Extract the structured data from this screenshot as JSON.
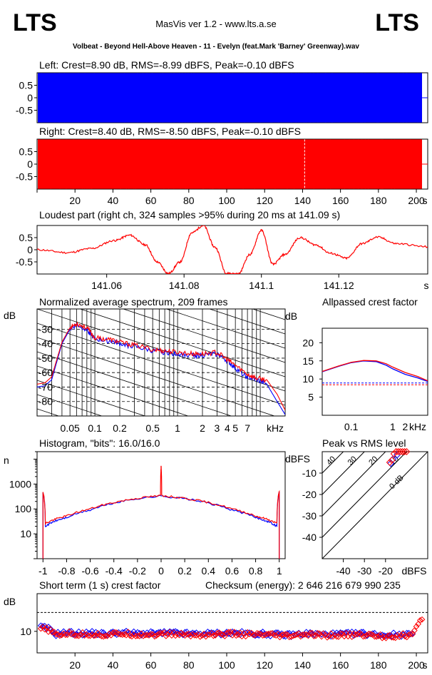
{
  "header": {
    "logo_left": "LTS",
    "app_title": "MasVis ver 1.2 - www.lts.a.se",
    "logo_right": "LTS",
    "file_name": "Volbeat - Beyond Hell-Above Heaven - 11 - Evelyn (feat.Mark 'Barney' Greenway).wav"
  },
  "colors": {
    "left": "#0000ff",
    "right": "#ff0000",
    "axis": "#000000"
  },
  "chart_data": [
    {
      "id": "left-waveform",
      "type": "area",
      "title": "Left: Crest=8.90 dB, RMS=-8.99 dBFS, Peak=-0.10 dBFS",
      "y_ticks": [
        "0.5",
        "0",
        "-0.5"
      ],
      "ylim": [
        -1,
        1
      ],
      "xlim": [
        0,
        206
      ],
      "fill_end_s": 203,
      "color": "#0000ff"
    },
    {
      "id": "right-waveform",
      "type": "area",
      "title": "Right: Crest=8.40 dB, RMS=-8.50 dBFS, Peak=-0.10 dBFS",
      "y_ticks": [
        "0.5",
        "0",
        "-0.5"
      ],
      "x_ticks": [
        "20",
        "40",
        "60",
        "80",
        "100",
        "120",
        "140",
        "160",
        "180",
        "200"
      ],
      "x_unit": "s",
      "ylim": [
        -1,
        1
      ],
      "xlim": [
        0,
        206
      ],
      "fill_end_s": 203,
      "loudest_marker_s": 141.09,
      "color": "#ff0000"
    },
    {
      "id": "loudest-part",
      "type": "line",
      "title": "Loudest part (right ch, 324 samples >95% during 20 ms at 141.09 s)",
      "y_ticks": [
        "0.5",
        "0",
        "-0.5"
      ],
      "x_ticks": [
        "141.06",
        "141.08",
        "141.1",
        "141.12"
      ],
      "x_unit": "s",
      "xlim": [
        141.042,
        141.143
      ],
      "ylim": [
        -1,
        1
      ],
      "series": [
        {
          "x": [
            141.042,
            141.05,
            141.056,
            141.062,
            141.066,
            141.07,
            141.073,
            141.076,
            141.079,
            141.082,
            141.085,
            141.088,
            141.091,
            141.094,
            141.097,
            141.1,
            141.103,
            141.106,
            141.11,
            141.114,
            141.118,
            141.122,
            141.126,
            141.13,
            141.135,
            141.143
          ],
          "y": [
            0,
            -0.12,
            0.05,
            0.38,
            0.6,
            0.2,
            -0.5,
            -0.98,
            -0.5,
            0.7,
            1.0,
            0.1,
            -0.97,
            -1.0,
            -0.2,
            0.8,
            -0.6,
            -0.2,
            0.5,
            0.2,
            -0.15,
            -0.35,
            0.25,
            0.52,
            0.25,
            0.12
          ]
        }
      ]
    },
    {
      "id": "spectrum",
      "type": "line",
      "title": "Normalized average spectrum, 209 frames",
      "ylabel": "dB",
      "y_ticks": [
        "-30",
        "-40",
        "-50",
        "-60",
        "-70",
        "-80"
      ],
      "x_ticks": [
        "0.05",
        "0.1",
        "0.2",
        "0.5",
        "1",
        "2",
        "3",
        "4",
        "5",
        "7"
      ],
      "x_unit": "kHz",
      "ylim": [
        -90,
        -16
      ],
      "xlim": [
        0.02,
        20
      ],
      "series": [
        {
          "color": "#0000ff",
          "x": [
            0.02,
            0.025,
            0.03,
            0.04,
            0.05,
            0.06,
            0.08,
            0.1,
            0.15,
            0.2,
            0.3,
            0.5,
            0.7,
            1,
            1.5,
            2,
            3,
            4,
            5,
            7,
            9,
            12,
            16,
            20
          ],
          "y": [
            -70,
            -69,
            -65,
            -40,
            -30,
            -27,
            -30,
            -37,
            -38,
            -40,
            -42,
            -45,
            -46,
            -47,
            -48,
            -48,
            -47,
            -52,
            -57,
            -63,
            -65,
            -68,
            -80,
            -89
          ]
        },
        {
          "color": "#ff0000",
          "x": [
            0.02,
            0.025,
            0.03,
            0.04,
            0.05,
            0.06,
            0.08,
            0.1,
            0.15,
            0.2,
            0.3,
            0.5,
            0.7,
            1,
            1.5,
            2,
            3,
            4,
            5,
            7,
            9,
            12,
            16,
            20
          ],
          "y": [
            -68,
            -67,
            -63,
            -39,
            -29,
            -26,
            -29,
            -36,
            -37,
            -39,
            -41,
            -44,
            -45,
            -46,
            -47,
            -47,
            -46,
            -51,
            -55,
            -61,
            -64,
            -65,
            -75,
            -86
          ]
        }
      ]
    },
    {
      "id": "allpassed-crest",
      "type": "line",
      "title": "Allpassed crest factor",
      "ylabel": "dB",
      "y_ticks": [
        "20",
        "15",
        "10",
        "5"
      ],
      "x_ticks": [
        "0.1",
        "1",
        "2"
      ],
      "x_unit": "kHz",
      "ylim": [
        0,
        24
      ],
      "xlim": [
        0.02,
        7
      ],
      "reference_lines": [
        {
          "value": 8.9,
          "color": "#0000ff"
        },
        {
          "value": 8.4,
          "color": "#ff0000"
        }
      ],
      "series": [
        {
          "color": "#0000ff",
          "x": [
            0.02,
            0.05,
            0.1,
            0.2,
            0.4,
            0.7,
            1,
            2,
            4,
            7
          ],
          "y": [
            12,
            13.5,
            14.5,
            15,
            14.8,
            13.8,
            12.8,
            11.3,
            10.3,
            9.3
          ]
        },
        {
          "color": "#ff0000",
          "x": [
            0.02,
            0.05,
            0.1,
            0.2,
            0.4,
            0.7,
            1,
            2,
            4,
            7
          ],
          "y": [
            12.1,
            13.6,
            14.6,
            15.1,
            15,
            14.2,
            13.3,
            11.8,
            10.7,
            9.5
          ]
        }
      ]
    },
    {
      "id": "histogram",
      "type": "line",
      "title": "Histogram, \"bits\": 16.0/16.0",
      "ylabel": "n",
      "y_ticks": [
        "1000",
        "100",
        "10"
      ],
      "x_ticks": [
        "-1",
        "-0.8",
        "-0.6",
        "-0.4",
        "-0.2",
        "0",
        "0.2",
        "0.4",
        "0.6",
        "0.8",
        "1"
      ],
      "ylim": [
        1,
        20000
      ],
      "xlim": [
        -1.05,
        1.05
      ],
      "y_scale": "log",
      "series": [
        {
          "color": "#0000ff",
          "x": [
            -1,
            -0.98,
            -0.9,
            -0.8,
            -0.6,
            -0.4,
            -0.2,
            0,
            0.2,
            0.4,
            0.6,
            0.8,
            0.9,
            0.98,
            1
          ],
          "y": [
            500,
            20,
            32,
            45,
            90,
            170,
            260,
            330,
            260,
            170,
            90,
            45,
            32,
            20,
            500
          ]
        },
        {
          "color": "#ff0000",
          "x": [
            -1,
            -0.98,
            -0.9,
            -0.8,
            -0.6,
            -0.4,
            -0.2,
            -0.005,
            0,
            0.005,
            0.2,
            0.4,
            0.6,
            0.8,
            0.9,
            0.98,
            1
          ],
          "y": [
            500,
            26,
            38,
            52,
            100,
            180,
            270,
            340,
            5500,
            340,
            270,
            180,
            100,
            52,
            38,
            26,
            500
          ]
        }
      ]
    },
    {
      "id": "peak-vs-rms",
      "type": "scatter",
      "title": "Peak vs RMS level",
      "ylabel": "dBFS",
      "y_ticks": [
        "-10",
        "-20",
        "-30",
        "-40"
      ],
      "x_ticks": [
        "-40",
        "-30",
        "-20"
      ],
      "x_unit": "dBFS",
      "crest_labels": [
        "40",
        "30",
        "20",
        "10",
        "0 dB"
      ],
      "xlim": [
        -50,
        0
      ],
      "ylim": [
        -50,
        0
      ],
      "series": [
        {
          "color": "#0000ff",
          "x": [
            -17.5,
            -16.5,
            -14.5
          ],
          "y": [
            -5.5,
            -3.5,
            -1.5
          ]
        },
        {
          "color": "#ff0000",
          "x": [
            -18,
            -17,
            -16,
            -15,
            -14,
            -13,
            -12,
            -11,
            -10
          ],
          "y": [
            -5,
            -4,
            -1,
            0,
            0,
            0,
            0,
            0,
            0
          ]
        }
      ]
    },
    {
      "id": "short-term-crest",
      "type": "scatter",
      "title": "Short term (1 s) crest factor",
      "checksum": "Checksum (energy):  2 646 216 679 990 235",
      "ylabel": "dB",
      "y_ticks": [
        "10"
      ],
      "x_ticks": [
        "20",
        "40",
        "60",
        "80",
        "100",
        "120",
        "140",
        "160",
        "180",
        "200"
      ],
      "x_unit": "s",
      "xlim": [
        0,
        206
      ],
      "ylim": [
        6,
        17
      ],
      "threshold": 13.5,
      "series": [
        {
          "color": "#0000ff",
          "x": [
            2,
            6,
            10,
            16,
            22,
            28,
            36,
            44,
            52,
            62,
            72,
            82,
            92,
            102,
            112,
            122,
            132,
            142,
            152,
            162,
            172,
            182,
            192,
            198
          ],
          "y": [
            10.8,
            10.5,
            9.5,
            9.8,
            9.6,
            9.7,
            9.5,
            9.8,
            9.6,
            9.6,
            9.7,
            9.5,
            9.6,
            9.7,
            9.6,
            9.5,
            9.3,
            9.6,
            9.4,
            9.5,
            9.6,
            9.3,
            9.4,
            9.6
          ]
        },
        {
          "color": "#ff0000",
          "x": [
            2,
            6,
            10,
            16,
            22,
            28,
            36,
            44,
            52,
            62,
            72,
            82,
            92,
            102,
            112,
            122,
            132,
            142,
            152,
            162,
            172,
            182,
            192,
            198,
            201,
            203
          ],
          "y": [
            10.5,
            10.3,
            9.3,
            9.6,
            9.4,
            9.5,
            9.3,
            9.6,
            9.4,
            9.4,
            9.5,
            9.3,
            9.4,
            9.5,
            9.4,
            9.3,
            9.1,
            9.4,
            9.2,
            9.3,
            9.4,
            9.1,
            9.2,
            9.4,
            11.2,
            12.2
          ]
        }
      ]
    }
  ]
}
